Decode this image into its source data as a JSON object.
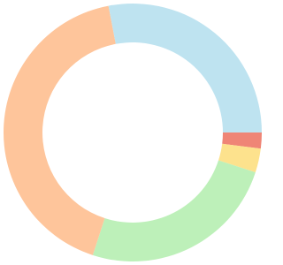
{
  "chart_data": {
    "type": "donut",
    "values": [
      2,
      3,
      25,
      42,
      28
    ],
    "colors": [
      "#ef8576",
      "#fde28d",
      "#bdf0b9",
      "#fec59b",
      "#bee3f0"
    ]
  }
}
